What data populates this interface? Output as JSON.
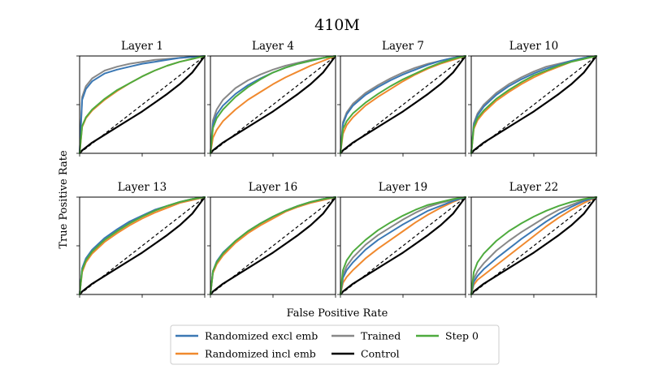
{
  "chart_data": {
    "type": "line",
    "suptitle": "410M",
    "xlabel": "False Positive Rate",
    "ylabel": "True Positive Rate",
    "xlim": [
      0,
      1
    ],
    "ylim": [
      0,
      1
    ],
    "tick_labels_shown": false,
    "grid": false,
    "legend_position": "bottom-center",
    "series_styles": [
      {
        "name": "Randomized excl emb",
        "color": "#3b78b4"
      },
      {
        "name": "Randomized incl emb",
        "color": "#f0892e"
      },
      {
        "name": "Trained",
        "color": "#888888"
      },
      {
        "name": "Control",
        "color": "#000000"
      },
      {
        "name": "Step 0",
        "color": "#4eab3e"
      }
    ],
    "chance_line": {
      "x": [
        0,
        1
      ],
      "y": [
        0,
        1
      ],
      "style": "dashed",
      "color": "#000000"
    },
    "x": [
      0,
      0.02,
      0.05,
      0.1,
      0.2,
      0.3,
      0.4,
      0.5,
      0.6,
      0.7,
      0.8,
      0.9,
      1.0
    ],
    "panels": [
      {
        "title": "Layer 1",
        "series": {
          "Randomized excl emb": [
            0,
            0.55,
            0.66,
            0.74,
            0.82,
            0.86,
            0.89,
            0.92,
            0.94,
            0.96,
            0.98,
            0.99,
            1.0
          ],
          "Randomized incl emb": [
            0,
            0.27,
            0.36,
            0.44,
            0.55,
            0.64,
            0.72,
            0.79,
            0.85,
            0.9,
            0.94,
            0.97,
            1.0
          ],
          "Trained": [
            0,
            0.58,
            0.69,
            0.77,
            0.85,
            0.89,
            0.92,
            0.94,
            0.96,
            0.97,
            0.98,
            0.99,
            1.0
          ],
          "Control": [
            0,
            0.03,
            0.06,
            0.11,
            0.19,
            0.27,
            0.35,
            0.43,
            0.52,
            0.61,
            0.71,
            0.83,
            1.0
          ],
          "Step 0": [
            0,
            0.28,
            0.37,
            0.45,
            0.56,
            0.65,
            0.72,
            0.79,
            0.85,
            0.9,
            0.94,
            0.97,
            1.0
          ]
        }
      },
      {
        "title": "Layer 4",
        "series": {
          "Randomized excl emb": [
            0,
            0.3,
            0.4,
            0.49,
            0.61,
            0.7,
            0.77,
            0.83,
            0.88,
            0.92,
            0.95,
            0.98,
            1.0
          ],
          "Randomized incl emb": [
            0,
            0.16,
            0.24,
            0.33,
            0.45,
            0.55,
            0.63,
            0.71,
            0.78,
            0.84,
            0.9,
            0.95,
            1.0
          ],
          "Trained": [
            0,
            0.34,
            0.45,
            0.55,
            0.67,
            0.75,
            0.81,
            0.86,
            0.9,
            0.93,
            0.96,
            0.98,
            1.0
          ],
          "Control": [
            0,
            0.03,
            0.06,
            0.11,
            0.19,
            0.27,
            0.35,
            0.43,
            0.52,
            0.61,
            0.71,
            0.83,
            1.0
          ],
          "Step 0": [
            0,
            0.26,
            0.36,
            0.45,
            0.58,
            0.68,
            0.76,
            0.83,
            0.88,
            0.92,
            0.95,
            0.98,
            1.0
          ]
        }
      },
      {
        "title": "Layer 7",
        "series": {
          "Randomized excl emb": [
            0,
            0.3,
            0.4,
            0.49,
            0.6,
            0.68,
            0.75,
            0.81,
            0.86,
            0.91,
            0.95,
            0.98,
            1.0
          ],
          "Randomized incl emb": [
            0,
            0.2,
            0.29,
            0.37,
            0.49,
            0.58,
            0.66,
            0.74,
            0.81,
            0.87,
            0.92,
            0.96,
            1.0
          ],
          "Trained": [
            0,
            0.32,
            0.42,
            0.51,
            0.62,
            0.7,
            0.77,
            0.83,
            0.88,
            0.92,
            0.95,
            0.98,
            1.0
          ],
          "Control": [
            0,
            0.03,
            0.06,
            0.11,
            0.19,
            0.27,
            0.35,
            0.43,
            0.52,
            0.61,
            0.71,
            0.83,
            1.0
          ],
          "Step 0": [
            0,
            0.25,
            0.33,
            0.41,
            0.52,
            0.61,
            0.69,
            0.76,
            0.82,
            0.88,
            0.93,
            0.97,
            1.0
          ]
        }
      },
      {
        "title": "Layer 10",
        "series": {
          "Randomized excl emb": [
            0,
            0.29,
            0.39,
            0.48,
            0.6,
            0.69,
            0.76,
            0.82,
            0.87,
            0.91,
            0.95,
            0.98,
            1.0
          ],
          "Randomized incl emb": [
            0,
            0.25,
            0.34,
            0.42,
            0.54,
            0.63,
            0.71,
            0.78,
            0.84,
            0.89,
            0.94,
            0.97,
            1.0
          ],
          "Trained": [
            0,
            0.31,
            0.41,
            0.5,
            0.62,
            0.71,
            0.78,
            0.84,
            0.89,
            0.92,
            0.95,
            0.98,
            1.0
          ],
          "Control": [
            0,
            0.03,
            0.06,
            0.11,
            0.19,
            0.27,
            0.35,
            0.43,
            0.52,
            0.61,
            0.71,
            0.83,
            1.0
          ],
          "Step 0": [
            0,
            0.27,
            0.36,
            0.44,
            0.56,
            0.65,
            0.73,
            0.8,
            0.85,
            0.9,
            0.94,
            0.97,
            1.0
          ]
        }
      },
      {
        "title": "Layer 13",
        "series": {
          "Randomized excl emb": [
            0,
            0.27,
            0.37,
            0.46,
            0.58,
            0.67,
            0.75,
            0.81,
            0.87,
            0.91,
            0.95,
            0.98,
            1.0
          ],
          "Randomized incl emb": [
            0,
            0.23,
            0.33,
            0.42,
            0.54,
            0.63,
            0.71,
            0.78,
            0.84,
            0.89,
            0.94,
            0.97,
            1.0
          ],
          "Trained": [
            0,
            0.26,
            0.36,
            0.45,
            0.57,
            0.66,
            0.74,
            0.8,
            0.86,
            0.91,
            0.95,
            0.98,
            1.0
          ],
          "Control": [
            0,
            0.03,
            0.06,
            0.11,
            0.19,
            0.27,
            0.35,
            0.43,
            0.52,
            0.61,
            0.71,
            0.83,
            1.0
          ],
          "Step 0": [
            0,
            0.25,
            0.35,
            0.44,
            0.56,
            0.65,
            0.73,
            0.8,
            0.86,
            0.91,
            0.95,
            0.98,
            1.0
          ]
        }
      },
      {
        "title": "Layer 16",
        "series": {
          "Randomized excl emb": [
            0,
            0.24,
            0.34,
            0.43,
            0.55,
            0.65,
            0.73,
            0.8,
            0.86,
            0.91,
            0.95,
            0.98,
            1.0
          ],
          "Randomized incl emb": [
            0,
            0.22,
            0.31,
            0.4,
            0.53,
            0.63,
            0.71,
            0.78,
            0.85,
            0.9,
            0.94,
            0.97,
            1.0
          ],
          "Trained": [
            0,
            0.24,
            0.33,
            0.42,
            0.55,
            0.65,
            0.73,
            0.8,
            0.86,
            0.91,
            0.95,
            0.98,
            1.0
          ],
          "Control": [
            0,
            0.03,
            0.06,
            0.11,
            0.19,
            0.27,
            0.35,
            0.43,
            0.52,
            0.61,
            0.71,
            0.83,
            1.0
          ],
          "Step 0": [
            0,
            0.24,
            0.33,
            0.42,
            0.55,
            0.65,
            0.73,
            0.8,
            0.86,
            0.91,
            0.95,
            0.98,
            1.0
          ]
        }
      },
      {
        "title": "Layer 19",
        "series": {
          "Randomized excl emb": [
            0,
            0.17,
            0.25,
            0.33,
            0.46,
            0.56,
            0.64,
            0.72,
            0.79,
            0.86,
            0.91,
            0.96,
            1.0
          ],
          "Randomized incl emb": [
            0,
            0.12,
            0.18,
            0.25,
            0.37,
            0.47,
            0.56,
            0.65,
            0.74,
            0.82,
            0.89,
            0.95,
            1.0
          ],
          "Trained": [
            0,
            0.2,
            0.29,
            0.38,
            0.51,
            0.61,
            0.69,
            0.77,
            0.84,
            0.9,
            0.94,
            0.97,
            1.0
          ],
          "Control": [
            0,
            0.03,
            0.06,
            0.11,
            0.19,
            0.27,
            0.35,
            0.43,
            0.52,
            0.61,
            0.71,
            0.83,
            1.0
          ],
          "Step 0": [
            0,
            0.25,
            0.35,
            0.44,
            0.56,
            0.66,
            0.74,
            0.81,
            0.87,
            0.92,
            0.95,
            0.98,
            1.0
          ]
        }
      },
      {
        "title": "Layer 22",
        "series": {
          "Randomized excl emb": [
            0,
            0.13,
            0.19,
            0.26,
            0.37,
            0.47,
            0.57,
            0.66,
            0.75,
            0.83,
            0.9,
            0.96,
            1.0
          ],
          "Randomized incl emb": [
            0,
            0.1,
            0.15,
            0.2,
            0.3,
            0.4,
            0.5,
            0.6,
            0.7,
            0.79,
            0.87,
            0.94,
            1.0
          ],
          "Trained": [
            0,
            0.16,
            0.24,
            0.32,
            0.45,
            0.55,
            0.64,
            0.72,
            0.8,
            0.87,
            0.92,
            0.97,
            1.0
          ],
          "Control": [
            0,
            0.03,
            0.06,
            0.11,
            0.19,
            0.27,
            0.35,
            0.43,
            0.52,
            0.61,
            0.71,
            0.83,
            1.0
          ],
          "Step 0": [
            0,
            0.23,
            0.33,
            0.42,
            0.55,
            0.65,
            0.73,
            0.8,
            0.86,
            0.91,
            0.95,
            0.98,
            1.0
          ]
        }
      }
    ]
  }
}
